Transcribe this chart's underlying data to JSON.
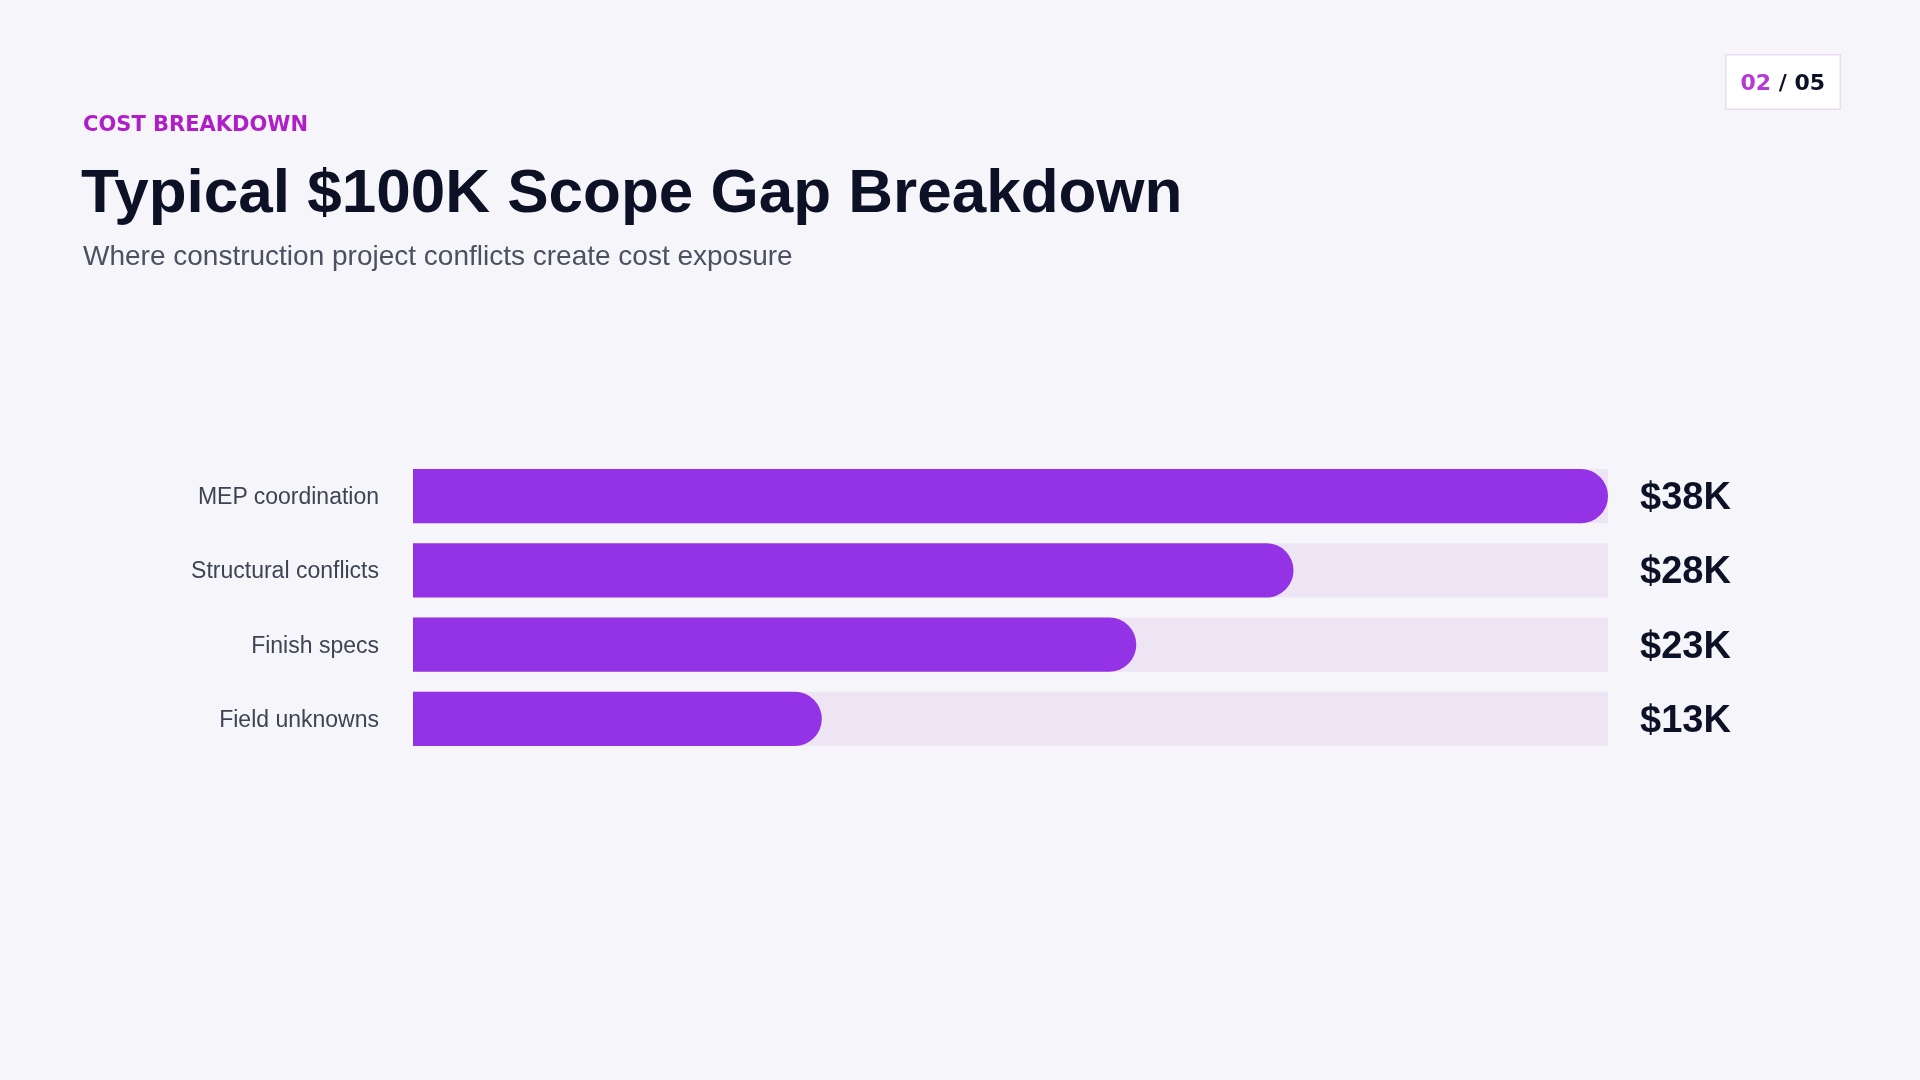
{
  "chart_data": {
    "type": "bar",
    "orientation": "horizontal",
    "title": "Typical $100K Scope Gap Breakdown",
    "subtitle": "Where construction project conflicts create cost exposure",
    "categories": [
      "MEP coordination",
      "Structural conflicts",
      "Finish specs",
      "Field unknowns"
    ],
    "values": [
      38,
      28,
      23,
      13
    ],
    "value_labels": [
      "$38K",
      "$28K",
      "$23K",
      "$13K"
    ],
    "color": "#9433e6",
    "annotations": [
      "COST BREAKDOWN",
      "02 / 05"
    ]
  }
}
